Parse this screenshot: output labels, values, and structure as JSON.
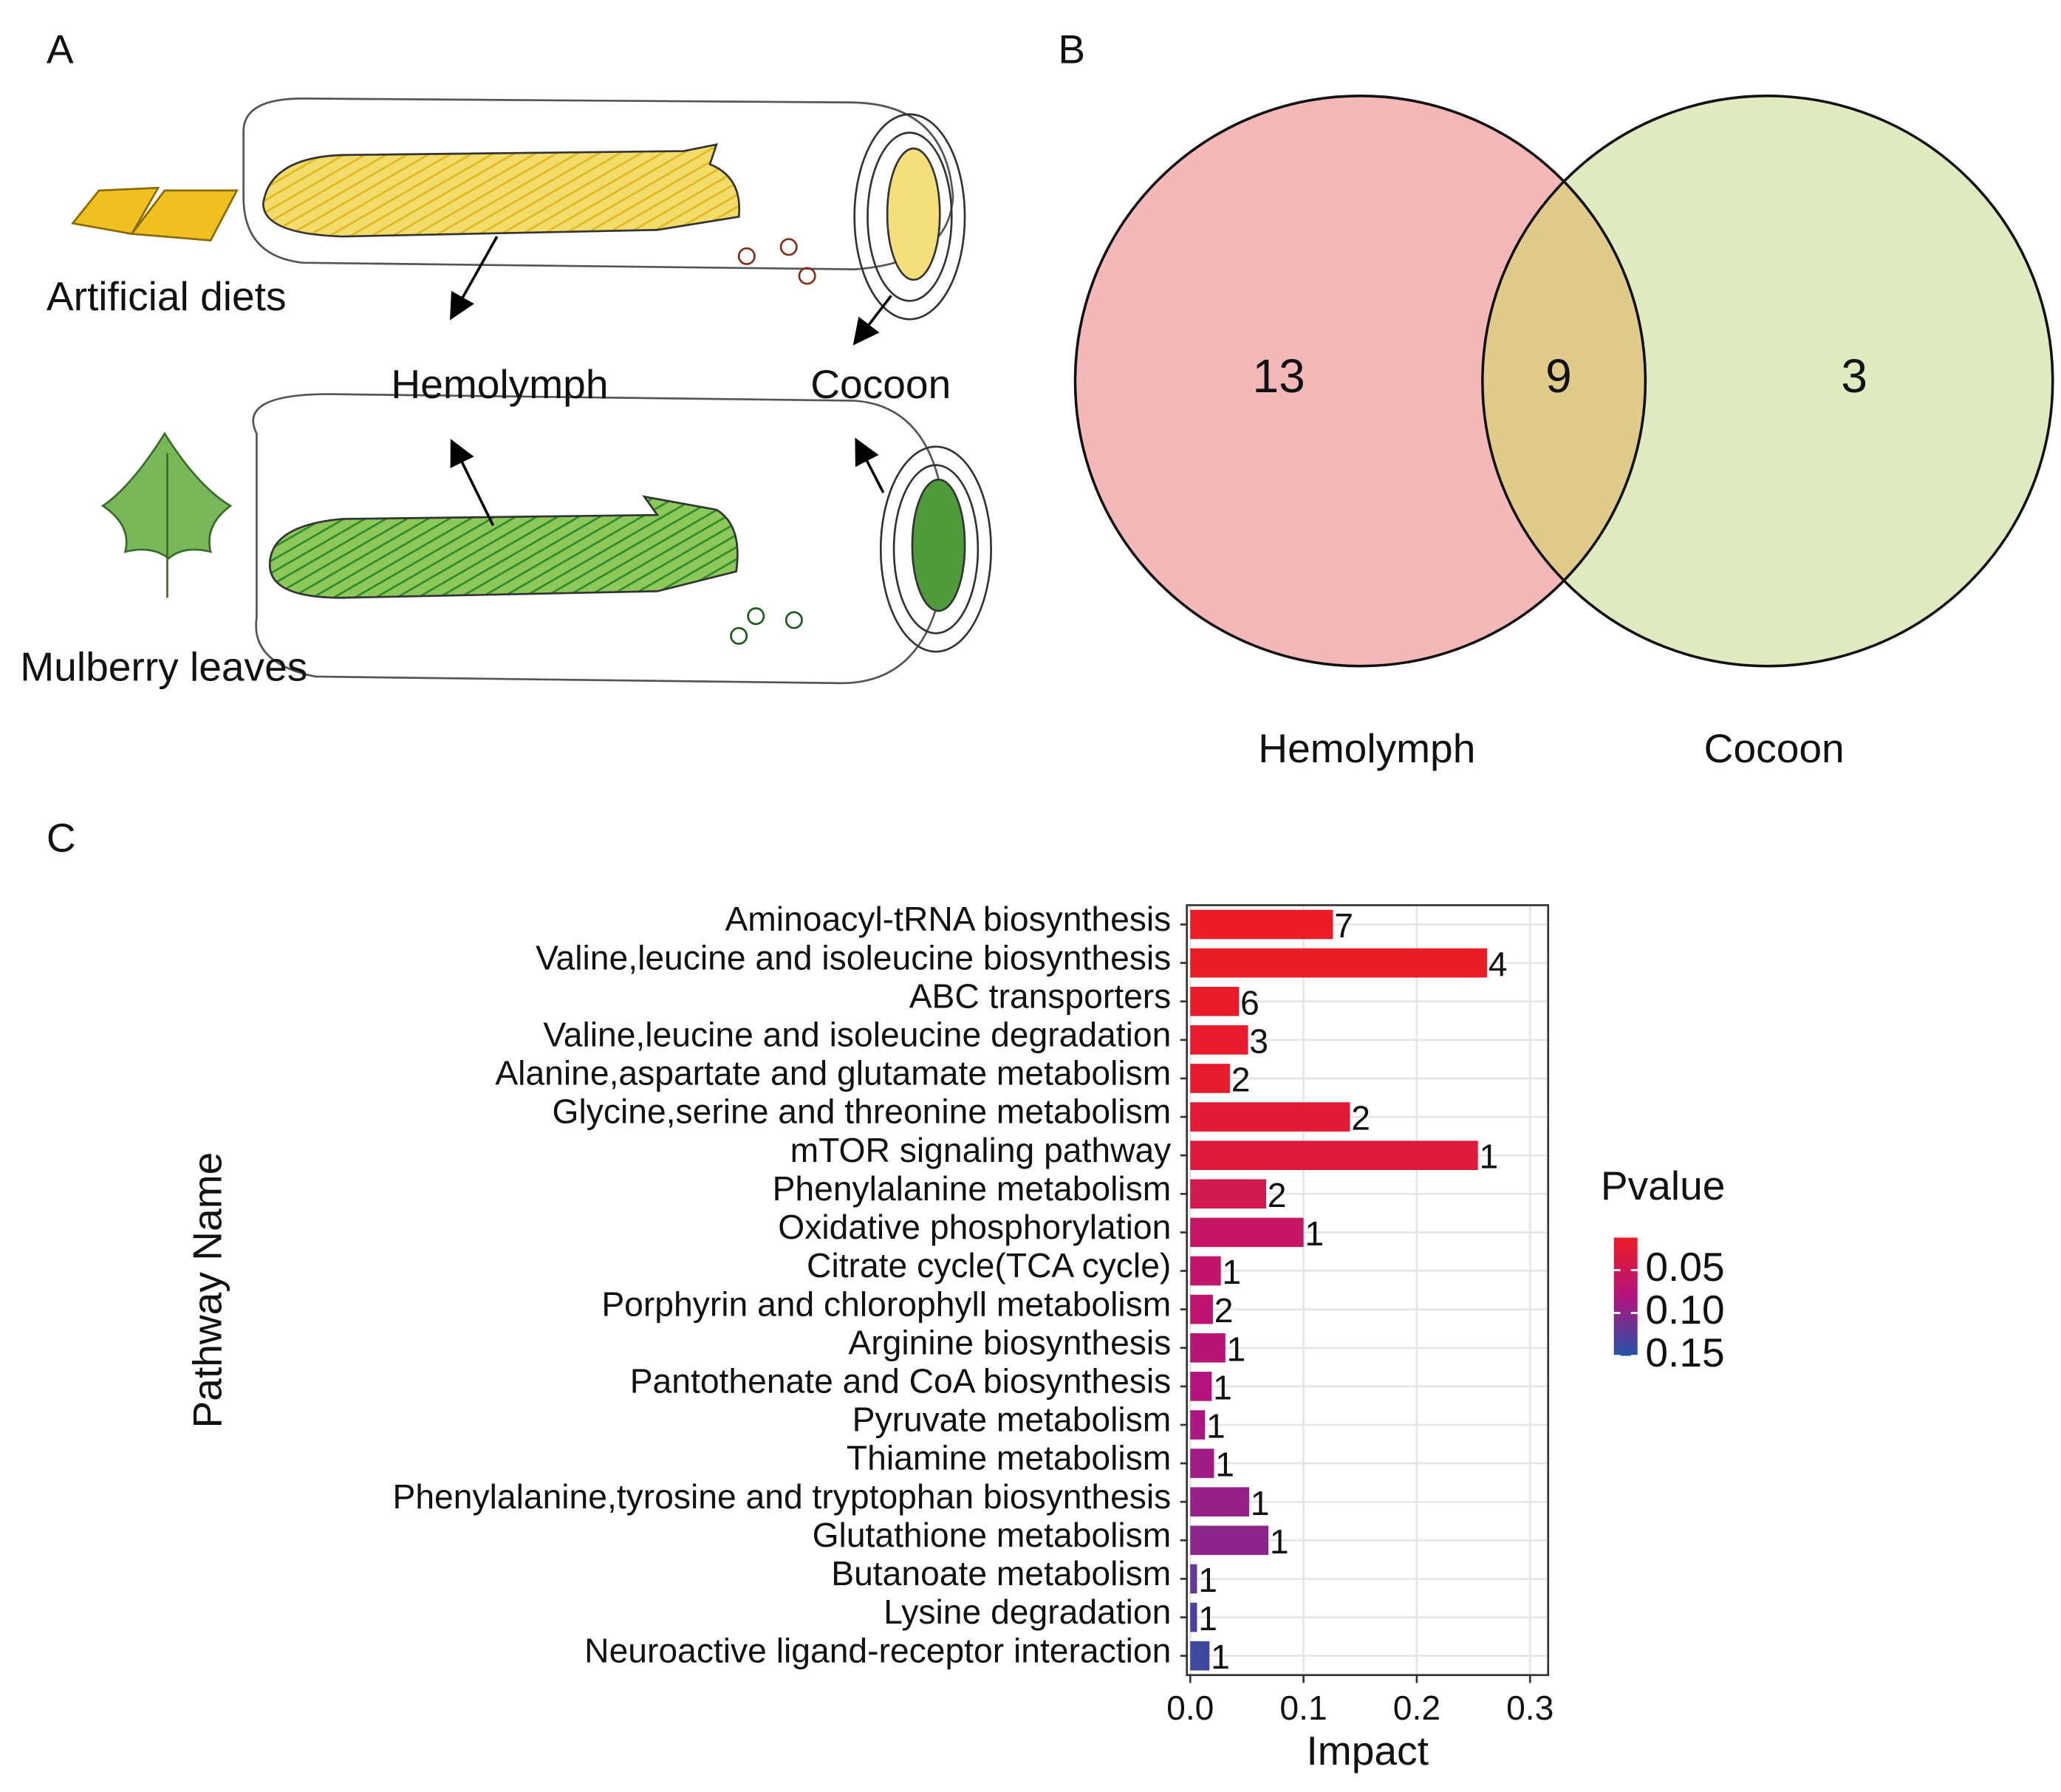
{
  "panel_labels": [
    "A",
    "B",
    "C"
  ],
  "illustration": {
    "labels": [
      "Artificial diets",
      "Hemolymph",
      "Cocoon",
      "Mulberry leaves"
    ]
  },
  "chart_data": [
    {
      "type": "venn",
      "sets": [
        {
          "name": "Hemolymph",
          "color": "#f5b8b8"
        },
        {
          "name": "Cocoon",
          "color": "#dfeac0"
        }
      ],
      "overlap_color": "#e0cb8a",
      "values": [
        13,
        9,
        3
      ]
    },
    {
      "type": "bar",
      "orientation": "horizontal",
      "y_label": "Pathway Name",
      "x_label": "Impact",
      "categories": [
        "Aminoacyl-tRNA biosynthesis",
        "Valine,leucine and isoleucine biosynthesis",
        "ABC transporters",
        "Valine,leucine and isoleucine degradation",
        "Alanine,aspartate and glutamate metabolism",
        "Glycine,serine and threonine metabolism",
        "mTOR signaling pathway",
        "Phenylalanine metabolism",
        "Oxidative phosphorylation",
        "Citrate cycle(TCA cycle)",
        "Porphyrin and chlorophyll metabolism",
        "Arginine biosynthesis",
        "Pantothenate and CoA biosynthesis",
        "Pyruvate metabolism",
        "Thiamine metabolism",
        "Phenylalanine,tyrosine and tryptophan biosynthesis",
        "Glutathione metabolism",
        "Butanoate metabolism",
        "Lysine degradation",
        "Neuroactive ligand-receptor interaction"
      ],
      "values": [
        0.126,
        0.262,
        0.043,
        0.051,
        0.035,
        0.141,
        0.254,
        0.067,
        0.1,
        0.027,
        0.02,
        0.031,
        0.019,
        0.013,
        0.021,
        0.052,
        0.069,
        0.006,
        0.006,
        0.017
      ],
      "hits": [
        7,
        4,
        6,
        3,
        2,
        2,
        1,
        2,
        1,
        1,
        2,
        1,
        1,
        1,
        1,
        1,
        1,
        1,
        1,
        1
      ],
      "pvalues": [
        0.013,
        0.015,
        0.016,
        0.018,
        0.02,
        0.025,
        0.03,
        0.045,
        0.06,
        0.065,
        0.07,
        0.075,
        0.08,
        0.085,
        0.09,
        0.095,
        0.1,
        0.12,
        0.13,
        0.137
      ],
      "xlim": [
        -0.003,
        0.316
      ],
      "xticks": [
        {
          "value": 0,
          "label": "0.0"
        },
        0.1,
        0.2,
        0.3
      ],
      "grid": true,
      "colorbar": {
        "title": "Pvalue",
        "lim": [
          0.012,
          0.15
        ],
        "ticks": [
          0.05,
          {
            "value": 0.1,
            "label": "0.10"
          },
          0.15
        ],
        "colors": [
          "#ec1c24",
          "#b3137e",
          "#2453a8"
        ]
      }
    }
  ]
}
